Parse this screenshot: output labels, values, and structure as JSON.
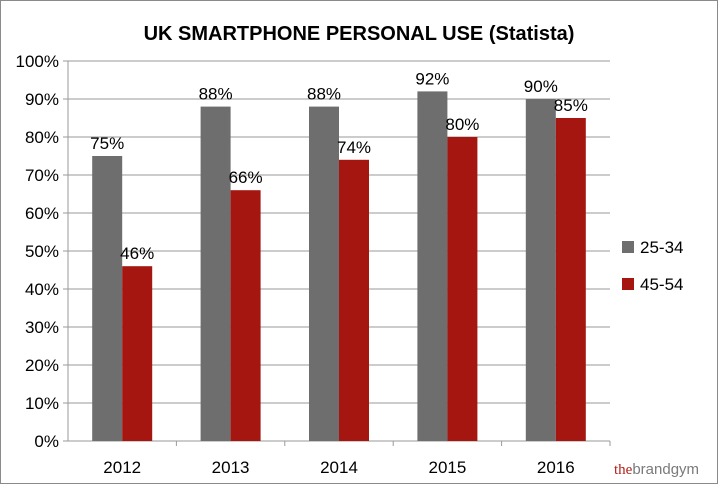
{
  "chart_data": {
    "type": "bar",
    "title": "UK SMARTPHONE PERSONAL USE (Statista)",
    "categories": [
      "2012",
      "2013",
      "2014",
      "2015",
      "2016"
    ],
    "series": [
      {
        "name": "25-34",
        "values": [
          75,
          88,
          88,
          92,
          90
        ],
        "labels": [
          "75%",
          "88%",
          "88%",
          "92%",
          "90%"
        ],
        "color": "#6e6e6e"
      },
      {
        "name": "45-54",
        "values": [
          46,
          66,
          74,
          80,
          85
        ],
        "labels": [
          "46%",
          "66%",
          "74%",
          "80%",
          "85%"
        ],
        "color": "#a4160f"
      }
    ],
    "ylim": [
      0,
      100
    ],
    "yticks": [
      "0%",
      "10%",
      "20%",
      "30%",
      "40%",
      "50%",
      "60%",
      "70%",
      "80%",
      "90%",
      "100%"
    ],
    "grid": true,
    "legend": "right"
  },
  "watermark": {
    "prefix": "the",
    "brand": "brandgym",
    "prefix_color": "#b3201a",
    "brand_color": "#7a7a7a"
  }
}
